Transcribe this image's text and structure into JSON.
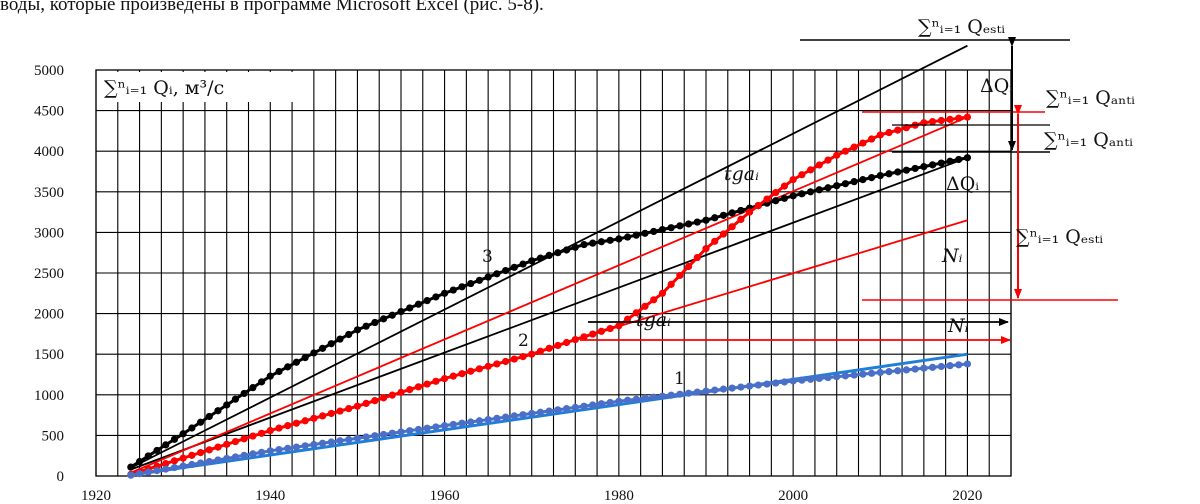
{
  "caption": "воды, которые произведены в программе Microsoft Excel (рис. 5-8).",
  "chart_data": {
    "type": "line",
    "xlim": [
      1920,
      2025
    ],
    "ylim": [
      0,
      5000
    ],
    "x_ticks": [
      1920,
      1940,
      1960,
      1980,
      2000,
      2020
    ],
    "y_ticks": [
      0,
      500,
      1000,
      1500,
      2000,
      2500,
      3000,
      3500,
      4000,
      4500,
      5000
    ],
    "ylabel": "∑ⁿᵢ₌₁ Qᵢ, м³/с",
    "grid": true,
    "series": [
      {
        "name": "3",
        "color": "#000000",
        "x": [
          1924,
          1930,
          1940,
          1950,
          1960,
          1970,
          1976,
          1980,
          1990,
          2000,
          2010,
          2020
        ],
        "y": [
          110,
          520,
          1230,
          1800,
          2250,
          2650,
          2850,
          2920,
          3150,
          3450,
          3700,
          3920
        ]
      },
      {
        "name": "2",
        "color": "#ff0000",
        "x": [
          1924,
          1930,
          1940,
          1950,
          1960,
          1970,
          1975,
          1980,
          1985,
          1990,
          1995,
          2000,
          2005,
          2010,
          2015,
          2020
        ],
        "y": [
          20,
          220,
          560,
          860,
          1200,
          1500,
          1680,
          1850,
          2250,
          2800,
          3250,
          3650,
          3950,
          4200,
          4350,
          4420
        ]
      },
      {
        "name": "1",
        "color": "#4a6fc8",
        "x": [
          1924,
          1940,
          1960,
          1980,
          2000,
          2020
        ],
        "y": [
          10,
          310,
          620,
          920,
          1170,
          1380
        ]
      }
    ],
    "trend_lines": [
      {
        "color": "#000000",
        "from": [
          1924,
          100
        ],
        "to": [
          2020,
          5300
        ]
      },
      {
        "color": "#000000",
        "from": [
          1924,
          80
        ],
        "to": [
          2020,
          3920
        ]
      },
      {
        "color": "#ff0000",
        "from": [
          1924,
          40
        ],
        "to": [
          2020,
          4420
        ]
      },
      {
        "color": "#ff0000",
        "from": [
          1975,
          1680
        ],
        "to": [
          2020,
          3150
        ]
      },
      {
        "color": "#1f7fd8",
        "from": [
          1924,
          10
        ],
        "to": [
          2020,
          1500
        ]
      }
    ],
    "annotation_labels": {
      "sum_est_top": "∑ⁿᵢ₌₁ Qₑₛₜᵢ",
      "dq_black": "ΔQᵢ",
      "sum_ant_1": "∑ⁿᵢ₌₁ Qₐₙₜᵢ",
      "sum_ant_2": "∑ⁿᵢ₌₁ Qₐₙₜᵢ",
      "tga_black": "tgaᵢ",
      "dq_red": "ΔQᵢ",
      "sum_est_mid": "∑ⁿᵢ₌₁ Qₑₛₜᵢ",
      "n_black": "Nᵢ",
      "tga_red": "tgaᵢ",
      "n_red": "Nᵢ",
      "label_3": "3",
      "label_2": "2",
      "label_1": "1"
    }
  }
}
